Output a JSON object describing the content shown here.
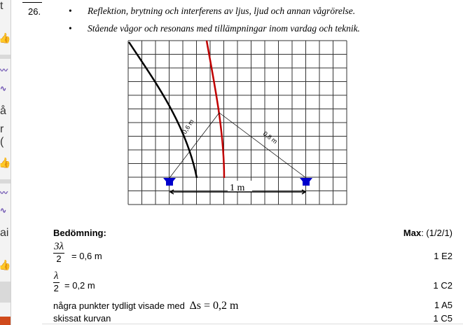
{
  "sidebar": {
    "fragments": [
      "t",
      "å",
      "r (",
      "ai"
    ],
    "icons": [
      "thumbs-up-icon",
      "squiggle-icon",
      "squiggle-icon",
      "thumbs-up-icon",
      "squiggle-icon",
      "squiggle-icon",
      "thumbs-up-icon"
    ]
  },
  "question": {
    "number": "26.",
    "bullets": [
      "Reflektion, brytning och interferens av ljus, ljud och annan vågrörelse.",
      "Stående vågor och resonans med tillämpningar inom vardag och teknik."
    ]
  },
  "diagram": {
    "label_left": "0,6 m",
    "label_right": "0,8 m",
    "label_distance": "1 m",
    "speaker_color": "#0000cc",
    "curve_colors": [
      "#000000",
      "#c00000"
    ]
  },
  "assessment": {
    "title": "Bedömning:",
    "max_label": "Max",
    "max_value": ": (1/2/1)",
    "rows": [
      {
        "num": "3λ",
        "den": "2",
        "text": "= 0,6 m",
        "score": "1 E2"
      },
      {
        "num": "λ",
        "den": "2",
        "text": "= 0,2 m",
        "score": "1 C2"
      },
      {
        "text": "några punkter tydligt visade med",
        "math": "Δs = 0,2 m",
        "score": "1 A5"
      },
      {
        "text": "skissat kurvan",
        "score": "1 C5"
      }
    ]
  }
}
